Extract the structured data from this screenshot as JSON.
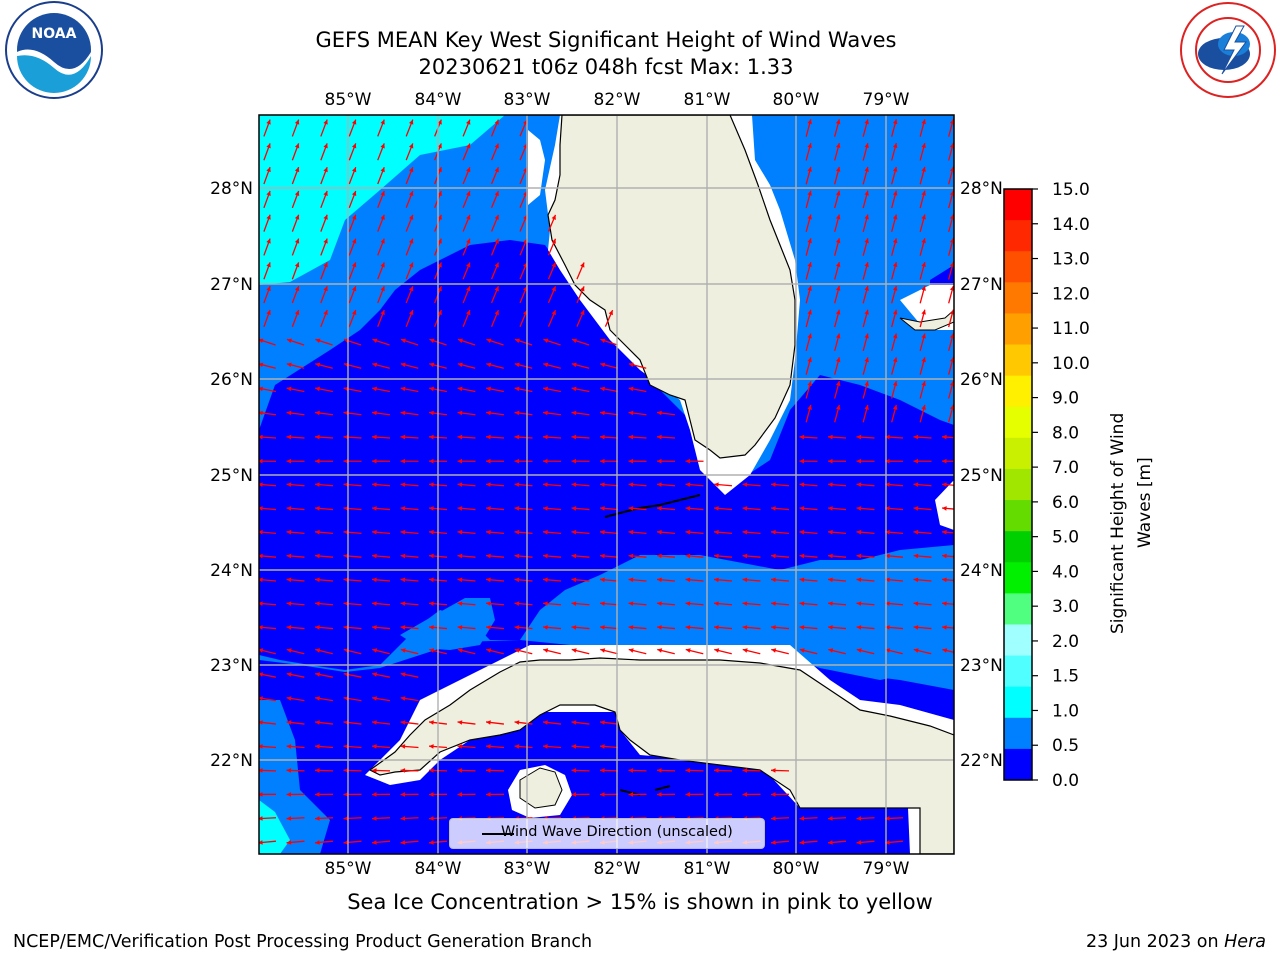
{
  "title": {
    "line1": "GEFS MEAN Key West Significant Height of Wind Waves",
    "line2": "20230621 t06z 048h fcst   Max: 1.33"
  },
  "map": {
    "lon_labels": [
      "85°W",
      "84°W",
      "83°W",
      "82°W",
      "81°W",
      "80°W",
      "79°W"
    ],
    "lat_labels": [
      "28°N",
      "27°N",
      "26°N",
      "25°N",
      "24°N",
      "23°N",
      "22°N"
    ],
    "ocean_colors": {
      "level_0_0_5": "#0000ff",
      "level_0_5_1_0": "#0080ff",
      "level_1_0_1_5": "#00ffff",
      "land": "#efefdf",
      "arrows": "#ff0000",
      "grid": "#b0b0b0"
    }
  },
  "legend": {
    "label": "Wind Wave Direction (unscaled)"
  },
  "colorbar": {
    "label_line1": "Significant Height of Wind",
    "label_line2": "Waves [m]",
    "ticks": [
      "15.0",
      "14.0",
      "13.0",
      "12.0",
      "11.0",
      "10.0",
      "9.0",
      "8.0",
      "7.0",
      "6.0",
      "5.0",
      "4.0",
      "3.0",
      "2.0",
      "1.5",
      "1.0",
      "0.5",
      "0.0"
    ],
    "colors_top_to_bottom": [
      "#ff0000",
      "#ff2800",
      "#ff5000",
      "#ff7800",
      "#ffa000",
      "#ffc800",
      "#fff000",
      "#e6ff00",
      "#c8f000",
      "#a0e600",
      "#64dc00",
      "#00d000",
      "#00f000",
      "#50ff80",
      "#a0ffff",
      "#50ffff",
      "#00ffff",
      "#0080ff",
      "#0000ff"
    ]
  },
  "note": "Sea Ice Concentration > 15% is shown in pink to yellow",
  "footer": {
    "left": "NCEP/EMC/Verification Post Processing Product Generation Branch",
    "right_date": "23 Jun 2023 on ",
    "right_host": "Hera"
  },
  "logos": {
    "noaa_text": "NOAA",
    "nws_text": "NATIONAL WEATHER SERVICE"
  }
}
